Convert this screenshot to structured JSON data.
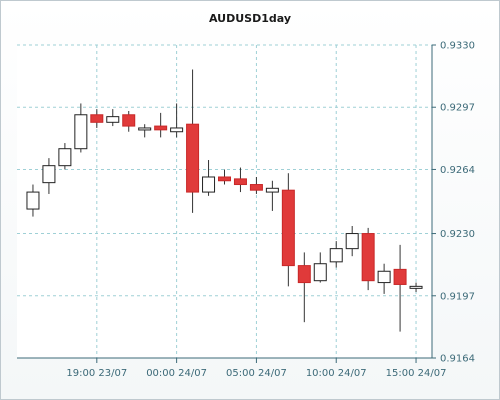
{
  "chart_data": {
    "type": "candlestick",
    "title": "AUDUSD1day",
    "y_ticks": [
      "0.9330",
      "0.9297",
      "0.9264",
      "0.9230",
      "0.9197",
      "0.9164"
    ],
    "ylim": [
      0.9164,
      0.933
    ],
    "x_tick_labels": [
      "19:00 23/07",
      "00:00 24/07",
      "05:00 24/07",
      "10:00 24/07",
      "15:00 24/07"
    ],
    "x_tick_slot_index": [
      4,
      9,
      14,
      19,
      24
    ],
    "grid": true,
    "colors": {
      "bullish": "#ffffff",
      "bearish": "#e03a3a",
      "grid": "#9fd0d6",
      "axis": "#3c6a78",
      "wick": "#333333"
    },
    "candles": [
      {
        "open": 0.9243,
        "high": 0.9256,
        "low": 0.9239,
        "close": 0.9252
      },
      {
        "open": 0.9257,
        "high": 0.927,
        "low": 0.9251,
        "close": 0.9266
      },
      {
        "open": 0.9266,
        "high": 0.9278,
        "low": 0.9264,
        "close": 0.9275
      },
      {
        "open": 0.9275,
        "high": 0.9299,
        "low": 0.9273,
        "close": 0.9293
      },
      {
        "open": 0.9293,
        "high": 0.9296,
        "low": 0.9286,
        "close": 0.9289
      },
      {
        "open": 0.9289,
        "high": 0.9296,
        "low": 0.9287,
        "close": 0.9292
      },
      {
        "open": 0.9293,
        "high": 0.9295,
        "low": 0.9284,
        "close": 0.9287
      },
      {
        "open": 0.9286,
        "high": 0.9288,
        "low": 0.9281,
        "close": 0.9286
      },
      {
        "open": 0.9287,
        "high": 0.9294,
        "low": 0.9281,
        "close": 0.9285
      },
      {
        "open": 0.9284,
        "high": 0.9299,
        "low": 0.9281,
        "close": 0.9286
      },
      {
        "open": 0.9288,
        "high": 0.9317,
        "low": 0.9241,
        "close": 0.9252
      },
      {
        "open": 0.9252,
        "high": 0.9269,
        "low": 0.925,
        "close": 0.926
      },
      {
        "open": 0.926,
        "high": 0.9264,
        "low": 0.9256,
        "close": 0.9258
      },
      {
        "open": 0.9259,
        "high": 0.9265,
        "low": 0.9252,
        "close": 0.9256
      },
      {
        "open": 0.9256,
        "high": 0.926,
        "low": 0.9251,
        "close": 0.9253
      },
      {
        "open": 0.9252,
        "high": 0.9258,
        "low": 0.9242,
        "close": 0.9254
      },
      {
        "open": 0.9253,
        "high": 0.9262,
        "low": 0.9202,
        "close": 0.9213
      },
      {
        "open": 0.9213,
        "high": 0.922,
        "low": 0.9183,
        "close": 0.9204
      },
      {
        "open": 0.9205,
        "high": 0.922,
        "low": 0.9204,
        "close": 0.9214
      },
      {
        "open": 0.9215,
        "high": 0.9226,
        "low": 0.9212,
        "close": 0.9222
      },
      {
        "open": 0.9222,
        "high": 0.9234,
        "low": 0.9218,
        "close": 0.923
      },
      {
        "open": 0.923,
        "high": 0.9233,
        "low": 0.92,
        "close": 0.9205
      },
      {
        "open": 0.9204,
        "high": 0.9214,
        "low": 0.9198,
        "close": 0.921
      },
      {
        "open": 0.9211,
        "high": 0.9224,
        "low": 0.9178,
        "close": 0.9203
      },
      {
        "open": 0.9202,
        "high": 0.9204,
        "low": 0.9199,
        "close": 0.9202
      }
    ]
  }
}
